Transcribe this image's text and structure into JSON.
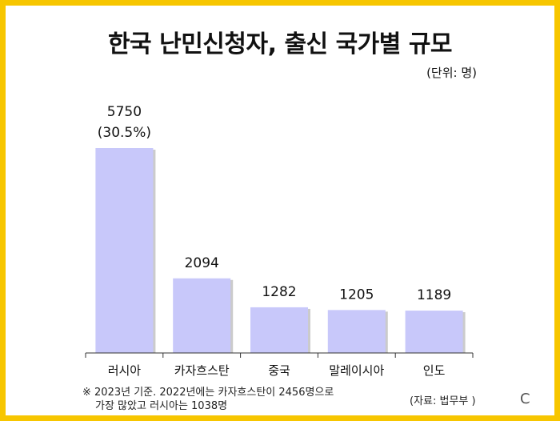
{
  "title": "한국 난민신청자, 출신 국가별 규모",
  "unit_label": "(단위: 명)",
  "note": {
    "line1": "※ 2023년 기준. 2022년에는 카자흐스탄이 2456명으로",
    "line2": "가장 많았고 러시아는 1038명"
  },
  "source": "(자료: 법무부 )",
  "logo_text": "C",
  "colors": {
    "border": "#f7c600",
    "bar": "#c8c8fa",
    "bar_shadow": "#a9a9a9"
  },
  "chart_data": {
    "type": "bar",
    "title": "한국 난민신청자, 출신 국가별 규모",
    "categories": [
      "러시아",
      "카자흐스탄",
      "중국",
      "말레이시아",
      "인도"
    ],
    "values": [
      5750,
      2094,
      1282,
      1205,
      1189
    ],
    "value_labels": [
      "5750",
      "2094",
      "1282",
      "1205",
      "1189"
    ],
    "extra_labels": [
      "(30.5%)",
      "",
      "",
      "",
      ""
    ],
    "ylim": [
      0,
      5750
    ],
    "grid": false
  }
}
